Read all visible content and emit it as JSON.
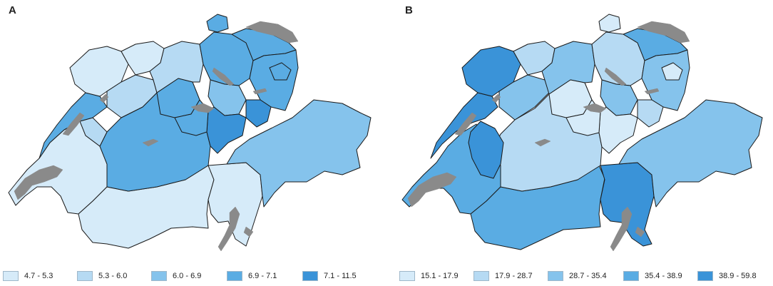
{
  "panels": [
    {
      "label": "A",
      "legend": [
        {
          "range": "4.7 - 5.3",
          "color": "#d6ebf9"
        },
        {
          "range": "5.3 - 6.0",
          "color": "#b6daf3"
        },
        {
          "range": "6.0 - 6.9",
          "color": "#85c3ec"
        },
        {
          "range": "6.9 - 7.1",
          "color": "#5aace3"
        },
        {
          "range": "7.1 - 11.5",
          "color": "#3a93d8"
        }
      ]
    },
    {
      "label": "B",
      "legend": [
        {
          "range": "15.1 - 17.9",
          "color": "#d6ebf9"
        },
        {
          "range": "17.9 - 28.7",
          "color": "#b6daf3"
        },
        {
          "range": "28.7 - 35.4",
          "color": "#85c3ec"
        },
        {
          "range": "35.4 - 38.9",
          "color": "#5aace3"
        },
        {
          "range": "38.9 - 59.8",
          "color": "#3a93d8"
        }
      ]
    }
  ],
  "colors": {
    "lake": "#8a8a8a",
    "border": "#1a1a1a"
  }
}
